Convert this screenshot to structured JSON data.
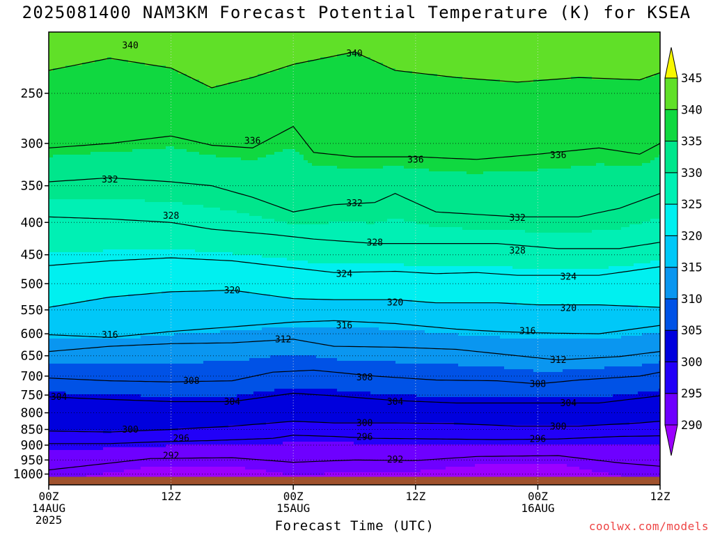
{
  "chart_data": {
    "type": "heatmap",
    "title": "2025081400 NAM3KM Forecast Potential Temperature (K) for KSEA",
    "xlabel": "Forecast Time (UTC)",
    "ylabel": "",
    "x_ticks": [
      {
        "hour": 0,
        "labels": [
          "00Z",
          "14AUG",
          "2025"
        ]
      },
      {
        "hour": 12,
        "labels": [
          "12Z"
        ]
      },
      {
        "hour": 24,
        "labels": [
          "00Z",
          "15AUG"
        ]
      },
      {
        "hour": 36,
        "labels": [
          "12Z"
        ]
      },
      {
        "hour": 48,
        "labels": [
          "00Z",
          "16AUG"
        ]
      },
      {
        "hour": 60,
        "labels": [
          "12Z"
        ]
      }
    ],
    "xlim": [
      0,
      60
    ],
    "y_axis": "pressure (hPa), log scale, decreasing upward",
    "ylim": [
      1040,
      200
    ],
    "y_ticks": [
      250,
      300,
      350,
      400,
      450,
      500,
      550,
      600,
      650,
      700,
      750,
      800,
      850,
      900,
      950,
      1000
    ],
    "grid": true,
    "colorbar": {
      "levels": [
        290,
        295,
        300,
        305,
        310,
        315,
        320,
        325,
        330,
        335,
        340,
        345
      ],
      "colors": [
        "#9b00ff",
        "#6e00ff",
        "#2200f8",
        "#0000dd",
        "#0052e6",
        "#0a96f0",
        "#00c8f8",
        "#00f0f0",
        "#00f0b4",
        "#00e68c",
        "#10d840",
        "#60e028",
        "#a8f000",
        "#f8f800"
      ],
      "extend": "both",
      "placement": "right"
    },
    "contour_levels": [
      292,
      296,
      300,
      304,
      308,
      312,
      316,
      320,
      324,
      328,
      332,
      336,
      340
    ],
    "series": [
      {
        "level": 292,
        "points": [
          [
            0,
            985
          ],
          [
            10,
            945
          ],
          [
            18,
            942
          ],
          [
            24,
            958
          ],
          [
            30,
            950
          ],
          [
            36,
            952
          ],
          [
            42,
            938
          ],
          [
            50,
            935
          ],
          [
            56,
            960
          ],
          [
            60,
            972
          ]
        ]
      },
      {
        "level": 296,
        "points": [
          [
            0,
            895
          ],
          [
            6,
            895
          ],
          [
            10,
            890
          ],
          [
            16,
            885
          ],
          [
            22,
            878
          ],
          [
            24,
            868
          ],
          [
            28,
            872
          ],
          [
            32,
            878
          ],
          [
            38,
            880
          ],
          [
            44,
            882
          ],
          [
            50,
            880
          ],
          [
            56,
            872
          ],
          [
            60,
            870
          ]
        ]
      },
      {
        "level": 300,
        "points": [
          [
            0,
            855
          ],
          [
            6,
            858
          ],
          [
            12,
            850
          ],
          [
            18,
            840
          ],
          [
            24,
            825
          ],
          [
            28,
            830
          ],
          [
            34,
            830
          ],
          [
            40,
            832
          ],
          [
            46,
            840
          ],
          [
            52,
            840
          ],
          [
            58,
            830
          ],
          [
            60,
            825
          ]
        ]
      },
      {
        "level": 304,
        "points": [
          [
            0,
            755
          ],
          [
            6,
            762
          ],
          [
            12,
            768
          ],
          [
            18,
            768
          ],
          [
            24,
            745
          ],
          [
            28,
            752
          ],
          [
            34,
            765
          ],
          [
            40,
            772
          ],
          [
            48,
            772
          ],
          [
            54,
            772
          ],
          [
            60,
            752
          ]
        ]
      },
      {
        "level": 308,
        "points": [
          [
            0,
            705
          ],
          [
            6,
            712
          ],
          [
            12,
            715
          ],
          [
            18,
            712
          ],
          [
            22,
            690
          ],
          [
            26,
            685
          ],
          [
            32,
            700
          ],
          [
            38,
            710
          ],
          [
            44,
            712
          ],
          [
            48,
            720
          ],
          [
            52,
            710
          ],
          [
            58,
            700
          ],
          [
            60,
            690
          ]
        ]
      },
      {
        "level": 312,
        "points": [
          [
            0,
            640
          ],
          [
            6,
            628
          ],
          [
            12,
            622
          ],
          [
            18,
            620
          ],
          [
            24,
            612
          ],
          [
            28,
            628
          ],
          [
            34,
            630
          ],
          [
            40,
            635
          ],
          [
            46,
            650
          ],
          [
            50,
            660
          ],
          [
            56,
            652
          ],
          [
            60,
            640
          ]
        ]
      },
      {
        "level": 316,
        "points": [
          [
            0,
            602
          ],
          [
            6,
            608
          ],
          [
            12,
            595
          ],
          [
            18,
            585
          ],
          [
            24,
            575
          ],
          [
            28,
            572
          ],
          [
            34,
            578
          ],
          [
            40,
            590
          ],
          [
            44,
            595
          ],
          [
            48,
            598
          ],
          [
            54,
            600
          ],
          [
            60,
            582
          ]
        ]
      },
      {
        "level": 320,
        "points": [
          [
            0,
            545
          ],
          [
            6,
            525
          ],
          [
            12,
            515
          ],
          [
            18,
            512
          ],
          [
            24,
            528
          ],
          [
            28,
            530
          ],
          [
            34,
            530
          ],
          [
            38,
            536
          ],
          [
            44,
            536
          ],
          [
            48,
            540
          ],
          [
            54,
            540
          ],
          [
            60,
            545
          ]
        ]
      },
      {
        "level": 324,
        "points": [
          [
            0,
            468
          ],
          [
            6,
            460
          ],
          [
            12,
            455
          ],
          [
            18,
            460
          ],
          [
            24,
            472
          ],
          [
            28,
            480
          ],
          [
            34,
            478
          ],
          [
            38,
            482
          ],
          [
            42,
            480
          ],
          [
            46,
            485
          ],
          [
            54,
            485
          ],
          [
            60,
            470
          ]
        ]
      },
      {
        "level": 328,
        "points": [
          [
            0,
            392
          ],
          [
            6,
            395
          ],
          [
            12,
            400
          ],
          [
            16,
            410
          ],
          [
            22,
            418
          ],
          [
            26,
            425
          ],
          [
            32,
            432
          ],
          [
            38,
            432
          ],
          [
            44,
            432
          ],
          [
            50,
            440
          ],
          [
            56,
            440
          ],
          [
            60,
            430
          ]
        ]
      },
      {
        "level": 332,
        "points": [
          [
            0,
            345
          ],
          [
            6,
            340
          ],
          [
            12,
            345
          ],
          [
            16,
            350
          ],
          [
            20,
            365
          ],
          [
            24,
            385
          ],
          [
            28,
            375
          ],
          [
            32,
            372
          ],
          [
            34,
            360
          ],
          [
            38,
            385
          ],
          [
            46,
            392
          ],
          [
            52,
            392
          ],
          [
            56,
            380
          ],
          [
            60,
            360
          ]
        ]
      },
      {
        "level": 336,
        "points": [
          [
            0,
            305
          ],
          [
            6,
            300
          ],
          [
            12,
            292
          ],
          [
            16,
            302
          ],
          [
            20,
            305
          ],
          [
            24,
            282
          ],
          [
            26,
            310
          ],
          [
            30,
            315
          ],
          [
            36,
            315
          ],
          [
            42,
            318
          ],
          [
            48,
            312
          ],
          [
            54,
            305
          ],
          [
            58,
            312
          ],
          [
            60,
            300
          ]
        ]
      },
      {
        "level": 340,
        "points": [
          [
            0,
            230
          ],
          [
            6,
            220
          ],
          [
            12,
            228
          ],
          [
            16,
            245
          ],
          [
            20,
            236
          ],
          [
            24,
            225
          ],
          [
            30,
            215
          ],
          [
            34,
            230
          ],
          [
            40,
            236
          ],
          [
            46,
            240
          ],
          [
            52,
            236
          ],
          [
            58,
            238
          ],
          [
            60,
            232
          ]
        ]
      }
    ],
    "contour_labels": [
      {
        "text": "340",
        "x": 8,
        "p": 210
      },
      {
        "text": "340",
        "x": 30,
        "p": 216
      },
      {
        "text": "336",
        "x": 20,
        "p": 297
      },
      {
        "text": "336",
        "x": 36,
        "p": 318
      },
      {
        "text": "336",
        "x": 50,
        "p": 313
      },
      {
        "text": "332",
        "x": 6,
        "p": 342
      },
      {
        "text": "332",
        "x": 30,
        "p": 373
      },
      {
        "text": "332",
        "x": 46,
        "p": 393
      },
      {
        "text": "328",
        "x": 12,
        "p": 390
      },
      {
        "text": "328",
        "x": 32,
        "p": 430
      },
      {
        "text": "328",
        "x": 46,
        "p": 443
      },
      {
        "text": "324",
        "x": 29,
        "p": 482
      },
      {
        "text": "324",
        "x": 51,
        "p": 487
      },
      {
        "text": "320",
        "x": 18,
        "p": 512
      },
      {
        "text": "320",
        "x": 34,
        "p": 535
      },
      {
        "text": "320",
        "x": 51,
        "p": 546
      },
      {
        "text": "316",
        "x": 6,
        "p": 602
      },
      {
        "text": "316",
        "x": 29,
        "p": 582
      },
      {
        "text": "316",
        "x": 47,
        "p": 594
      },
      {
        "text": "312",
        "x": 23,
        "p": 612
      },
      {
        "text": "312",
        "x": 50,
        "p": 660
      },
      {
        "text": "308",
        "x": 14,
        "p": 712
      },
      {
        "text": "308",
        "x": 31,
        "p": 703
      },
      {
        "text": "308",
        "x": 48,
        "p": 720
      },
      {
        "text": "304",
        "x": 1,
        "p": 755
      },
      {
        "text": "304",
        "x": 18,
        "p": 768
      },
      {
        "text": "304",
        "x": 34,
        "p": 768
      },
      {
        "text": "304",
        "x": 51,
        "p": 772
      },
      {
        "text": "300",
        "x": 8,
        "p": 850
      },
      {
        "text": "300",
        "x": 31,
        "p": 830
      },
      {
        "text": "300",
        "x": 50,
        "p": 840
      },
      {
        "text": "296",
        "x": 13,
        "p": 878
      },
      {
        "text": "296",
        "x": 31,
        "p": 873
      },
      {
        "text": "296",
        "x": 48,
        "p": 880
      },
      {
        "text": "292",
        "x": 12,
        "p": 935
      },
      {
        "text": "292",
        "x": 34,
        "p": 948
      }
    ],
    "ground_level_hPa": 1010
  },
  "credit": "coolwx.com/models"
}
